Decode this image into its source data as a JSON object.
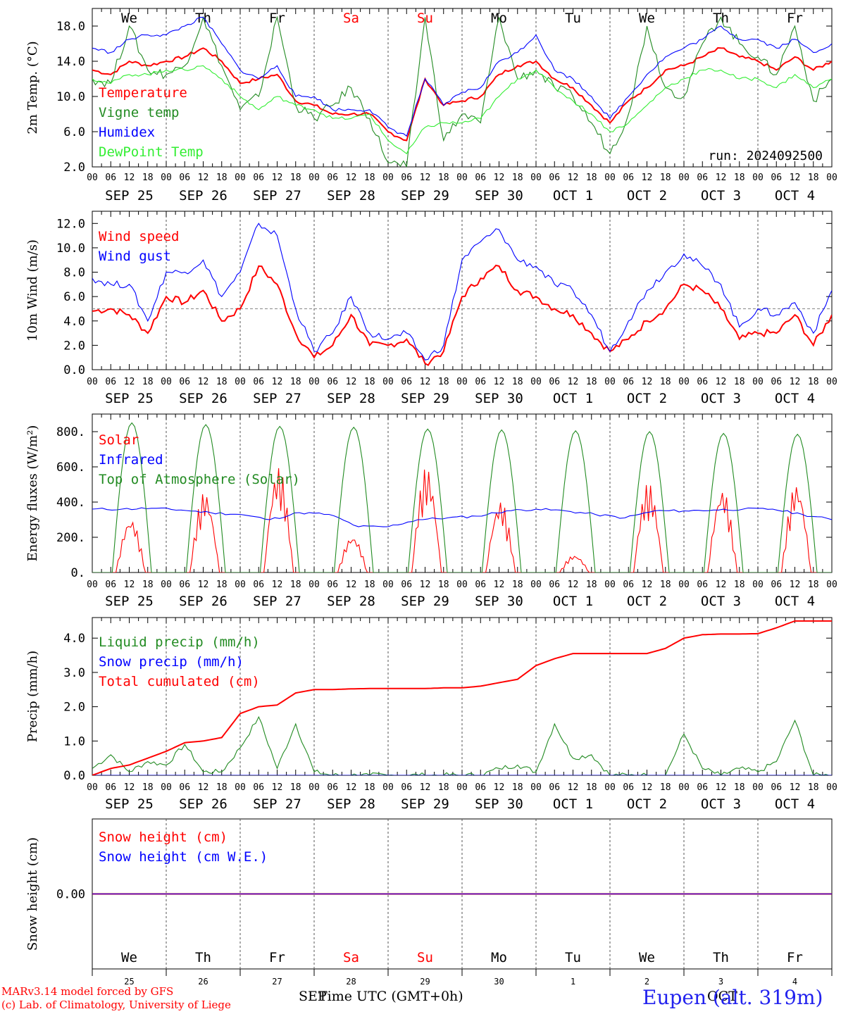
{
  "run_label": "run: 2024092500",
  "footer": {
    "model": "MARv3.14 model forced by GFS",
    "lab": "(c) Lab. of Climatology, University of Liege",
    "xlabel": "Time UTC (GMT+0h)",
    "month_left": "SEP",
    "month_right": "OCT",
    "station": "Eupen (alt. 319m)"
  },
  "hour_ticks": [
    "00",
    "06",
    "12",
    "18"
  ],
  "day_labels": [
    "SEP 25",
    "SEP 26",
    "SEP 27",
    "SEP 28",
    "SEP 29",
    "SEP 30",
    "OCT  1",
    "OCT  2",
    "OCT  3",
    "OCT  4"
  ],
  "weekdays": [
    {
      "label": "We",
      "color": "#000000"
    },
    {
      "label": "Th",
      "color": "#000000"
    },
    {
      "label": "Fr",
      "color": "#000000"
    },
    {
      "label": "Sa",
      "color": "#ff0000"
    },
    {
      "label": "Su",
      "color": "#ff0000"
    },
    {
      "label": "Mo",
      "color": "#000000"
    },
    {
      "label": "Tu",
      "color": "#000000"
    },
    {
      "label": "We",
      "color": "#000000"
    },
    {
      "label": "Th",
      "color": "#000000"
    },
    {
      "label": "Fr",
      "color": "#000000"
    }
  ],
  "bottom_day_numbers": [
    "25",
    "26",
    "27",
    "28",
    "29",
    "30",
    "1",
    "2",
    "3",
    "4"
  ],
  "chart_data": [
    {
      "type": "line",
      "id": "temp",
      "ylabel": "2m Temp. (°C)",
      "ylim": [
        2,
        20
      ],
      "yticks": [
        "2.0",
        "6.0",
        "10.0",
        "14.0",
        "18.0"
      ],
      "ytick_values": [
        2,
        6,
        10,
        14,
        18
      ],
      "x_days": [
        0,
        0.25,
        0.5,
        0.75,
        1,
        1.25,
        1.5,
        1.75,
        2,
        2.25,
        2.5,
        2.75,
        3,
        3.25,
        3.5,
        3.75,
        4,
        4.25,
        4.5,
        4.75,
        5,
        5.25,
        5.5,
        5.75,
        6,
        6.25,
        6.5,
        6.75,
        7,
        7.25,
        7.5,
        7.75,
        8,
        8.25,
        8.5,
        8.75,
        9,
        9.25,
        9.5,
        9.75,
        10
      ],
      "series": [
        {
          "name": "Temperature",
          "color": "#ff0000",
          "values": [
            13,
            12.5,
            14,
            13.5,
            14,
            14.5,
            15.5,
            14,
            11.5,
            12,
            12.5,
            9.5,
            9,
            8,
            8,
            8,
            6,
            5,
            12,
            9,
            9.5,
            10,
            12.5,
            13.5,
            14,
            12,
            11,
            9,
            7,
            9.5,
            11,
            13,
            13.5,
            14.5,
            15.5,
            14.5,
            14,
            13,
            14.5,
            13,
            14
          ]
        },
        {
          "name": "Vigne temp",
          "color": "#228b22",
          "values": [
            12,
            11.5,
            18,
            13,
            12.5,
            13.5,
            19,
            13.5,
            8.5,
            10,
            19,
            9,
            7.5,
            9,
            11,
            7.5,
            2.5,
            2,
            19,
            5,
            8,
            7,
            19,
            12,
            13,
            11,
            10,
            7,
            3.5,
            8,
            18,
            11,
            10,
            16,
            19,
            16,
            14.5,
            12.5,
            18,
            9.5,
            12
          ]
        },
        {
          "name": "Humidex",
          "color": "#0000ff",
          "values": [
            15.5,
            15,
            16.5,
            17,
            17,
            18,
            19,
            16,
            13,
            12,
            13.5,
            10,
            10,
            8.5,
            8.5,
            8.5,
            6.5,
            5.5,
            12,
            9,
            10.5,
            11,
            14,
            15,
            17,
            13,
            12,
            10,
            7.5,
            10,
            12.5,
            14.5,
            15.5,
            16.5,
            18,
            16.5,
            16.5,
            15.5,
            16.5,
            15,
            16
          ]
        },
        {
          "name": "DewPoint Temp",
          "color": "#33ee33",
          "values": [
            12,
            11.5,
            12.5,
            12.5,
            13,
            13,
            13.5,
            12,
            10,
            8.5,
            10,
            9,
            8.5,
            7.5,
            7.5,
            8,
            5,
            3.5,
            6.5,
            7,
            7,
            7.5,
            10,
            12,
            13,
            11,
            9.5,
            8,
            6,
            7,
            9,
            11,
            12,
            13,
            13,
            12,
            12,
            11,
            12.5,
            11,
            12
          ]
        }
      ]
    },
    {
      "type": "line",
      "id": "wind",
      "ylabel": "10m Wind (m/s)",
      "ylim": [
        0,
        13
      ],
      "ref_line": 5,
      "yticks": [
        "0.0",
        "2.0",
        "4.0",
        "6.0",
        "8.0",
        "10.0",
        "12.0"
      ],
      "ytick_values": [
        0,
        2,
        4,
        6,
        8,
        10,
        12
      ],
      "x_days": [
        0,
        0.25,
        0.5,
        0.75,
        1,
        1.25,
        1.5,
        1.75,
        2,
        2.25,
        2.5,
        2.75,
        3,
        3.25,
        3.5,
        3.75,
        4,
        4.25,
        4.5,
        4.75,
        5,
        5.25,
        5.5,
        5.75,
        6,
        6.25,
        6.5,
        6.75,
        7,
        7.25,
        7.5,
        7.75,
        8,
        8.25,
        8.5,
        8.75,
        9,
        9.25,
        9.5,
        9.75,
        10
      ],
      "series": [
        {
          "name": "Wind speed",
          "color": "#ff0000",
          "values": [
            4.8,
            5,
            4.5,
            3,
            6,
            5.5,
            6.5,
            4,
            5,
            8.5,
            7,
            3,
            1,
            2,
            4.5,
            2,
            2,
            2.5,
            0.5,
            1.5,
            6,
            7.5,
            8.5,
            6.5,
            6,
            5,
            4.5,
            3,
            1.5,
            2.5,
            4,
            5,
            7,
            6.5,
            5,
            2.5,
            3,
            3,
            4.5,
            2,
            4.5
          ]
        },
        {
          "name": "Wind gust",
          "color": "#0000ff",
          "values": [
            7.5,
            7,
            7,
            4,
            8,
            8,
            9,
            6,
            8,
            12,
            11,
            5,
            1.5,
            3,
            6,
            3,
            2.5,
            3,
            0.8,
            2,
            9,
            10.5,
            11.5,
            9,
            8.5,
            7,
            6.5,
            4.5,
            1.5,
            4,
            6.5,
            8,
            9.5,
            8.5,
            7,
            3.5,
            5,
            4.5,
            5.5,
            3,
            6.5
          ]
        }
      ]
    },
    {
      "type": "line",
      "id": "energy",
      "ylabel": "Energy fluxes (W/m²)",
      "ylim": [
        0,
        900
      ],
      "yticks": [
        "0.",
        "200.",
        "400.",
        "600.",
        "800."
      ],
      "ytick_values": [
        0,
        200,
        400,
        600,
        800
      ],
      "series": [
        {
          "name": "Solar",
          "color": "#ff0000",
          "peaks": [
            310,
            460,
            600,
            210,
            600,
            410,
            100,
            510,
            480,
            510
          ]
        },
        {
          "name": "Infrared",
          "color": "#0000ff",
          "values": [
            360,
            360,
            365,
            355,
            340,
            330,
            300,
            340,
            330,
            260,
            260,
            300,
            310,
            320,
            350,
            360,
            350,
            330,
            310,
            350,
            350,
            355,
            360,
            360,
            330,
            300
          ]
        },
        {
          "name": "Top of Atmosphere (Solar)",
          "color": "#228b22",
          "peaks": [
            850,
            840,
            830,
            825,
            815,
            810,
            805,
            800,
            790,
            785
          ]
        }
      ]
    },
    {
      "type": "line",
      "id": "precip",
      "ylabel": "Precip (mm/h)",
      "ylim": [
        0,
        4.6
      ],
      "yticks": [
        "0.0",
        "1.0",
        "2.0",
        "3.0",
        "4.0"
      ],
      "ytick_values": [
        0,
        1,
        2,
        3,
        4
      ],
      "x_days": [
        0,
        0.25,
        0.5,
        0.75,
        1,
        1.25,
        1.5,
        1.75,
        2,
        2.25,
        2.5,
        2.75,
        3,
        3.25,
        3.5,
        3.75,
        4,
        4.25,
        4.5,
        4.75,
        5,
        5.25,
        5.5,
        5.75,
        6,
        6.25,
        6.5,
        6.75,
        7,
        7.25,
        7.5,
        7.75,
        8,
        8.25,
        8.5,
        8.75,
        9,
        9.25,
        9.5,
        9.75,
        10
      ],
      "series": [
        {
          "name": "Liquid precip (mm/h)",
          "color": "#228b22",
          "values": [
            0.2,
            0.6,
            0.1,
            0.4,
            0.3,
            0.9,
            0.1,
            0.1,
            0.8,
            1.7,
            0.2,
            1.5,
            0.1,
            0,
            0,
            0,
            0,
            0,
            0,
            0,
            0,
            0,
            0.2,
            0.3,
            0.1,
            1.5,
            0.5,
            0.6,
            0,
            0,
            0,
            0,
            1.2,
            0.2,
            0,
            0.2,
            0.1,
            0.4,
            1.6,
            0,
            0
          ]
        },
        {
          "name": "Snow precip (mm/h)",
          "color": "#0000ff",
          "values": [
            0,
            0,
            0,
            0,
            0,
            0,
            0,
            0,
            0,
            0,
            0,
            0,
            0,
            0,
            0,
            0,
            0,
            0,
            0,
            0,
            0,
            0,
            0,
            0,
            0,
            0,
            0,
            0,
            0,
            0,
            0,
            0,
            0,
            0,
            0,
            0,
            0,
            0,
            0,
            0,
            0
          ]
        },
        {
          "name": "Total cumulated (cm)",
          "color": "#ff0000",
          "values": [
            0,
            0.2,
            0.3,
            0.5,
            0.7,
            0.95,
            1.0,
            1.1,
            1.8,
            2.0,
            2.05,
            2.4,
            2.5,
            2.5,
            2.52,
            2.53,
            2.53,
            2.53,
            2.53,
            2.55,
            2.55,
            2.6,
            2.7,
            2.8,
            3.2,
            3.4,
            3.55,
            3.55,
            3.55,
            3.55,
            3.55,
            3.7,
            4.0,
            4.1,
            4.12,
            4.12,
            4.13,
            4.3,
            4.5,
            4.5,
            4.5
          ]
        }
      ]
    },
    {
      "type": "line",
      "id": "snow",
      "ylabel": "Snow height (cm)",
      "ylim": [
        -1,
        1
      ],
      "yticks": [
        "0.00"
      ],
      "ytick_values": [
        0
      ],
      "series": [
        {
          "name": "Snow height (cm)",
          "color": "#ff0000",
          "values": [
            0,
            0
          ]
        },
        {
          "name": "Snow height (cm W.E.)",
          "color": "#0000ff",
          "values": [
            0,
            0
          ]
        }
      ]
    }
  ]
}
